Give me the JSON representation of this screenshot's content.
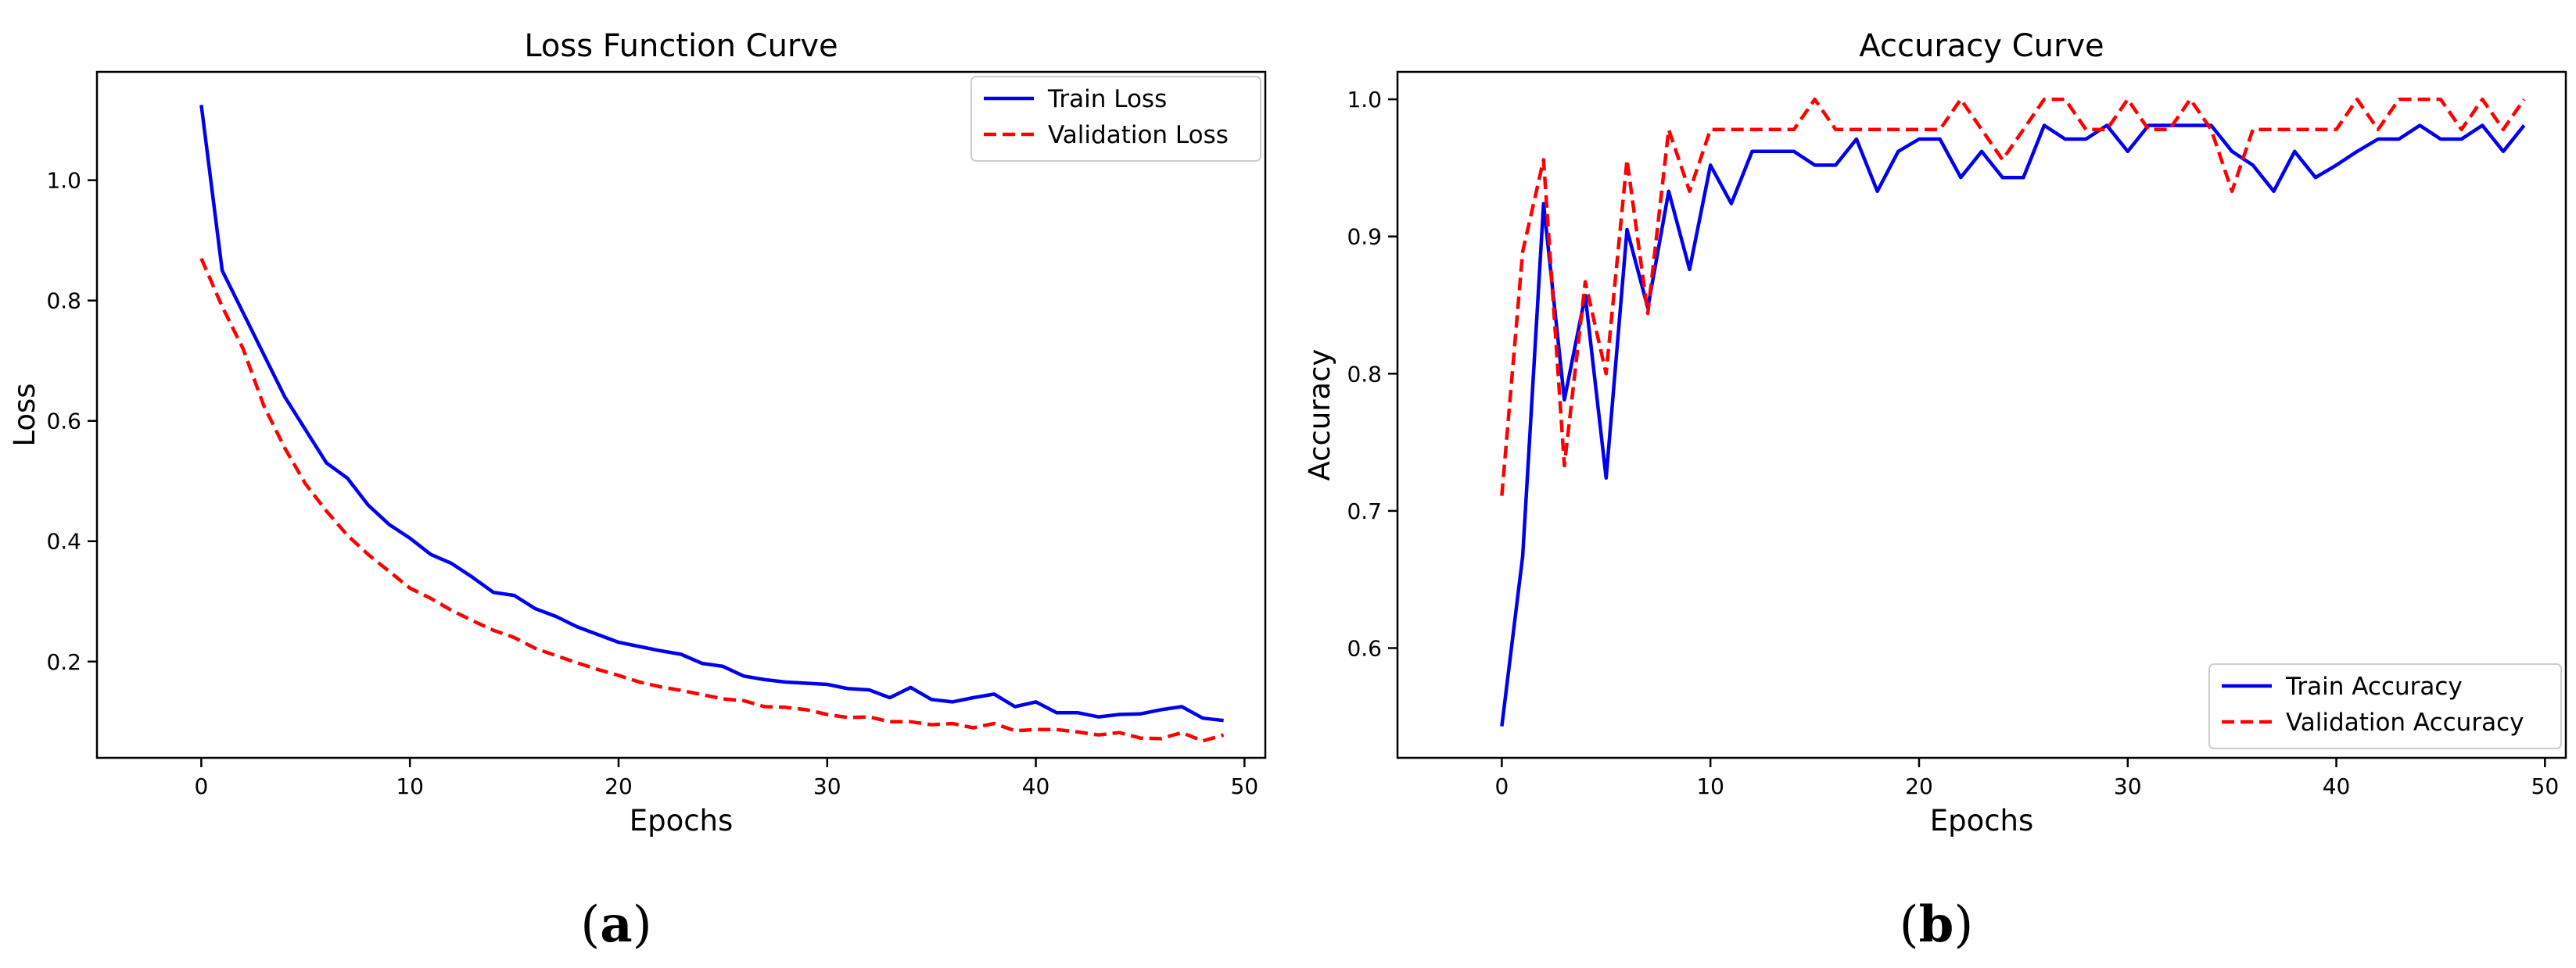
{
  "chart_data": [
    {
      "type": "line",
      "title": "Loss Function Curve",
      "xlabel": "Epochs",
      "ylabel": "Loss",
      "xlim": [
        -5,
        51
      ],
      "ylim": [
        0.04,
        1.18
      ],
      "xticks": [
        0,
        10,
        20,
        30,
        40,
        50
      ],
      "yticks": [
        0.2,
        0.4,
        0.6,
        0.8,
        1.0
      ],
      "legend_position": "top-right",
      "x": [
        0,
        1,
        2,
        3,
        4,
        5,
        6,
        7,
        8,
        9,
        10,
        11,
        12,
        13,
        14,
        15,
        16,
        17,
        18,
        19,
        20,
        21,
        22,
        23,
        24,
        25,
        26,
        27,
        28,
        29,
        30,
        31,
        32,
        33,
        34,
        35,
        36,
        37,
        38,
        39,
        40,
        41,
        42,
        43,
        44,
        45,
        46,
        47,
        48,
        49
      ],
      "series": [
        {
          "name": "Train Loss",
          "color": "#0000ee",
          "style": "solid",
          "values": [
            1.125,
            0.85,
            0.78,
            0.71,
            0.64,
            0.585,
            0.53,
            0.505,
            0.46,
            0.428,
            0.405,
            0.378,
            0.363,
            0.34,
            0.315,
            0.31,
            0.288,
            0.275,
            0.258,
            0.245,
            0.232,
            0.225,
            0.218,
            0.212,
            0.197,
            0.192,
            0.176,
            0.17,
            0.166,
            0.164,
            0.162,
            0.155,
            0.153,
            0.14,
            0.157,
            0.137,
            0.133,
            0.14,
            0.146,
            0.125,
            0.133,
            0.115,
            0.115,
            0.108,
            0.112,
            0.113,
            0.12,
            0.125,
            0.106,
            0.102
          ]
        },
        {
          "name": "Validation Loss",
          "color": "#ff0000",
          "style": "dashed",
          "values": [
            0.87,
            0.79,
            0.72,
            0.625,
            0.555,
            0.495,
            0.45,
            0.41,
            0.378,
            0.35,
            0.322,
            0.305,
            0.285,
            0.268,
            0.252,
            0.24,
            0.222,
            0.21,
            0.198,
            0.187,
            0.177,
            0.166,
            0.158,
            0.152,
            0.145,
            0.138,
            0.135,
            0.125,
            0.124,
            0.12,
            0.112,
            0.107,
            0.108,
            0.1,
            0.1,
            0.095,
            0.097,
            0.09,
            0.097,
            0.085,
            0.087,
            0.087,
            0.083,
            0.078,
            0.082,
            0.073,
            0.072,
            0.082,
            0.068,
            0.078
          ]
        }
      ]
    },
    {
      "type": "line",
      "title": "Accuracy Curve",
      "xlabel": "Epochs",
      "ylabel": "Accuracy",
      "xlim": [
        -5,
        51
      ],
      "ylim": [
        0.52,
        1.02
      ],
      "xticks": [
        0,
        10,
        20,
        30,
        40,
        50
      ],
      "yticks": [
        0.6,
        0.7,
        0.8,
        0.9,
        1.0
      ],
      "legend_position": "bottom-right",
      "x": [
        0,
        1,
        2,
        3,
        4,
        5,
        6,
        7,
        8,
        9,
        10,
        11,
        12,
        13,
        14,
        15,
        16,
        17,
        18,
        19,
        20,
        21,
        22,
        23,
        24,
        25,
        26,
        27,
        28,
        29,
        30,
        31,
        32,
        33,
        34,
        35,
        36,
        37,
        38,
        39,
        40,
        41,
        42,
        43,
        44,
        45,
        46,
        47,
        48,
        49
      ],
      "series": [
        {
          "name": "Train Accuracy",
          "color": "#0000ee",
          "style": "solid",
          "values": [
            0.543,
            0.667,
            0.924,
            0.781,
            0.857,
            0.724,
            0.905,
            0.848,
            0.933,
            0.876,
            0.952,
            0.924,
            0.962,
            0.962,
            0.962,
            0.952,
            0.952,
            0.971,
            0.933,
            0.962,
            0.971,
            0.971,
            0.943,
            0.962,
            0.943,
            0.943,
            0.981,
            0.971,
            0.971,
            0.981,
            0.962,
            0.981,
            0.981,
            0.981,
            0.981,
            0.962,
            0.952,
            0.933,
            0.962,
            0.943,
            0.952,
            0.962,
            0.971,
            0.971,
            0.981,
            0.971,
            0.971,
            0.981,
            0.962,
            0.981
          ]
        },
        {
          "name": "Validation Accuracy",
          "color": "#ff0000",
          "style": "dashed",
          "values": [
            0.711,
            0.889,
            0.956,
            0.733,
            0.867,
            0.8,
            0.956,
            0.844,
            0.978,
            0.933,
            0.978,
            0.978,
            0.978,
            0.978,
            0.978,
            1.0,
            0.978,
            0.978,
            0.978,
            0.978,
            0.978,
            0.978,
            1.0,
            0.978,
            0.956,
            0.978,
            1.0,
            1.0,
            0.978,
            0.978,
            1.0,
            0.978,
            0.978,
            1.0,
            0.978,
            0.933,
            0.978,
            0.978,
            0.978,
            0.978,
            0.978,
            1.0,
            0.978,
            1.0,
            1.0,
            1.0,
            0.978,
            1.0,
            0.978,
            1.0
          ]
        }
      ]
    }
  ],
  "captions": {
    "a": {
      "open": "(",
      "letter": "a",
      "close": ")"
    },
    "b": {
      "open": "(",
      "letter": "b",
      "close": ")"
    }
  }
}
